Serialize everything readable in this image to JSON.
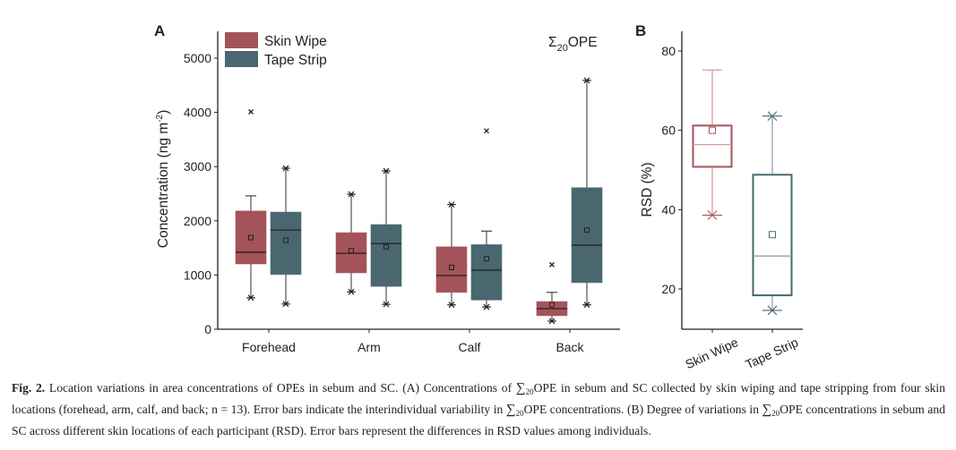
{
  "chart_data": [
    {
      "panel_label": "A",
      "type": "box",
      "title": "Σ20OPE",
      "title_main": "Σ",
      "title_sub": "20",
      "title_rest": "OPE",
      "xlabel": "",
      "ylabel_prefix": "Concentration (ng m",
      "ylabel_sup": "-2",
      "ylabel_suffix": ")",
      "ylim": [
        0,
        5500
      ],
      "yticks": [
        0,
        1000,
        2000,
        3000,
        4000,
        5000
      ],
      "categories": [
        "Forehead",
        "Arm",
        "Calf",
        "Back"
      ],
      "legend": {
        "placement": "top-left",
        "entries": [
          "Skin Wipe",
          "Tape Strip"
        ]
      },
      "series": [
        {
          "name": "Skin Wipe",
          "color": "#a5535a",
          "boxes": [
            {
              "whisker_low": 580,
              "q1": 1205,
              "median": 1420,
              "q3": 2180,
              "whisker_high": 2460,
              "mean": 1690,
              "outliers": [
                4010
              ],
              "low_cap": "star",
              "high_cap": "bar"
            },
            {
              "whisker_low": 690,
              "q1": 1040,
              "median": 1400,
              "q3": 1780,
              "whisker_high": 2490,
              "mean": 1450,
              "outliers": [],
              "low_cap": "star",
              "high_cap": "star"
            },
            {
              "whisker_low": 450,
              "q1": 680,
              "median": 990,
              "q3": 1520,
              "whisker_high": 2300,
              "mean": 1140,
              "outliers": [],
              "low_cap": "star",
              "high_cap": "star"
            },
            {
              "whisker_low": 150,
              "q1": 250,
              "median": 380,
              "q3": 510,
              "whisker_high": 680,
              "mean": 450,
              "outliers": [
                1190
              ],
              "low_cap": "star",
              "high_cap": "bar"
            }
          ]
        },
        {
          "name": "Tape Strip",
          "color": "#4a6770",
          "boxes": [
            {
              "whisker_low": 465,
              "q1": 1010,
              "median": 1830,
              "q3": 2160,
              "whisker_high": 2970,
              "mean": 1640,
              "outliers": [],
              "low_cap": "star",
              "high_cap": "star"
            },
            {
              "whisker_low": 460,
              "q1": 790,
              "median": 1580,
              "q3": 1930,
              "whisker_high": 2920,
              "mean": 1520,
              "outliers": [],
              "low_cap": "star",
              "high_cap": "star"
            },
            {
              "whisker_low": 410,
              "q1": 540,
              "median": 1090,
              "q3": 1560,
              "whisker_high": 1810,
              "mean": 1300,
              "outliers": [
                3660
              ],
              "low_cap": "star",
              "high_cap": "bar"
            },
            {
              "whisker_low": 450,
              "q1": 860,
              "median": 1550,
              "q3": 2610,
              "whisker_high": 4590,
              "mean": 1830,
              "outliers": [],
              "low_cap": "star",
              "high_cap": "star"
            }
          ]
        }
      ]
    },
    {
      "panel_label": "B",
      "type": "box",
      "xlabel": "",
      "ylabel": "RSD (%)",
      "ylim": [
        10,
        85
      ],
      "yticks": [
        20,
        40,
        60,
        80
      ],
      "categories": [
        "Skin Wipe",
        "Tape Strip"
      ],
      "boxes": [
        {
          "name": "Skin Wipe",
          "color": "#a5535a",
          "whisker_color": "#d19ea2",
          "whisker_low": 38.6,
          "q1": 50.8,
          "median": 56.4,
          "q3": 61.2,
          "whisker_high": 75.2,
          "mean": 60.0,
          "low_cap": "cross",
          "high_cap": "bar"
        },
        {
          "name": "Tape Strip",
          "color": "#4a6770",
          "whisker_color": "#8fa3a9",
          "whisker_low": 14.6,
          "q1": 18.4,
          "median": 28.3,
          "q3": 48.8,
          "whisker_high": 63.6,
          "mean": 33.7,
          "low_cap": "cross",
          "high_cap": "cross"
        }
      ]
    }
  ],
  "caption": {
    "fig_label": "Fig. 2.",
    "part1": " Location variations in area concentrations of OPEs in sebum and SC. (A) Concentrations of ",
    "sum_symbol": "∑",
    "sum_sub": "20",
    "part2": "OPE in sebum and SC collected by skin wiping and tape stripping from four skin locations (forehead, arm, calf, and back; n = 13). Error bars indicate the interindividual variability in ",
    "part3": "OPE concentrations. (B) Degree of variations in ",
    "part4": "OPE concentrations in sebum and SC across different skin locations of each participant (RSD). Error bars represent the differences in RSD values among individuals."
  }
}
